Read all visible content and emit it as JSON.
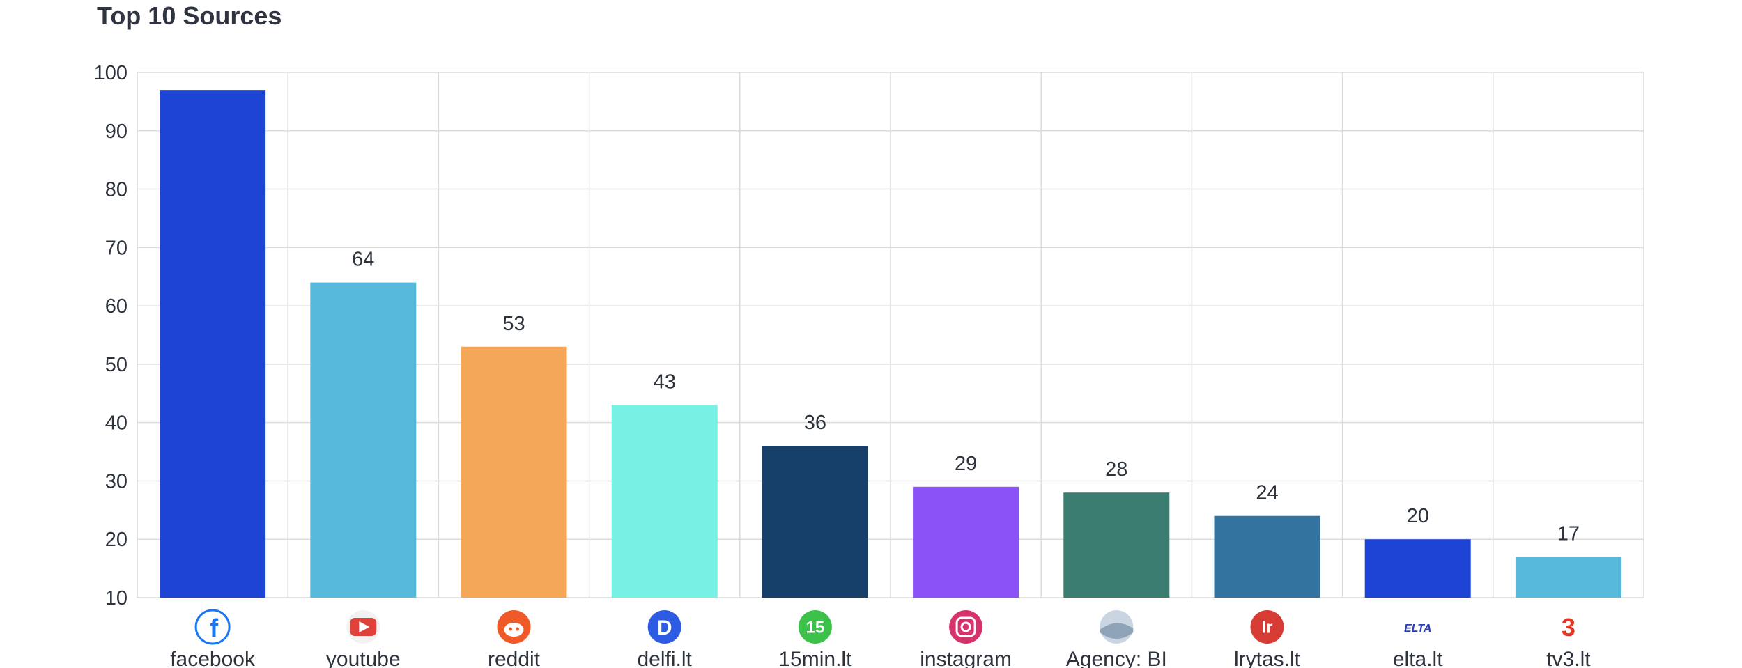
{
  "chart_data": {
    "type": "bar",
    "title": "Top 10 Sources",
    "xlabel": "",
    "ylabel": "",
    "ylim": [
      10,
      100
    ],
    "yticks": [
      10,
      20,
      30,
      40,
      50,
      60,
      70,
      80,
      90,
      100
    ],
    "grid": true,
    "categories": [
      "facebook",
      "youtube",
      "reddit",
      "delfi.lt",
      "15min.lt",
      "instagram",
      "Agency: BI",
      "lrytas.lt",
      "elta.lt",
      "tv3.lt"
    ],
    "values": [
      97,
      64,
      53,
      43,
      36,
      29,
      28,
      24,
      20,
      17
    ],
    "data_labels": [
      "",
      "64",
      "53",
      "43",
      "36",
      "29",
      "28",
      "24",
      "20",
      "17"
    ],
    "colors": [
      "#1e44d6",
      "#56b8da",
      "#f4a757",
      "#78f0e3",
      "#163f6a",
      "#8b52f7",
      "#3b7d70",
      "#3373a0",
      "#1e44d6",
      "#56b8da"
    ],
    "icons": [
      {
        "name": "facebook-icon",
        "color": "#1877f2",
        "glyph": "f"
      },
      {
        "name": "youtube-icon",
        "color": "#e0413a",
        "glyph": "▶"
      },
      {
        "name": "reddit-icon",
        "color": "#f05a28",
        "glyph": "●"
      },
      {
        "name": "delfi-icon",
        "color": "#2d5be3",
        "glyph": "D"
      },
      {
        "name": "15min-icon",
        "color": "#3cc24a",
        "glyph": "15"
      },
      {
        "name": "instagram-icon",
        "color": "#d6336c",
        "glyph": "◎"
      },
      {
        "name": "agency-avatar-icon",
        "color": "#9bb0c4",
        "glyph": ""
      },
      {
        "name": "lrytas-icon",
        "color": "#d63b34",
        "glyph": "lr"
      },
      {
        "name": "elta-icon",
        "color": "#2b3fb8",
        "glyph": "ELTA"
      },
      {
        "name": "tv3-icon",
        "color": "#e53425",
        "glyph": "3"
      }
    ]
  }
}
